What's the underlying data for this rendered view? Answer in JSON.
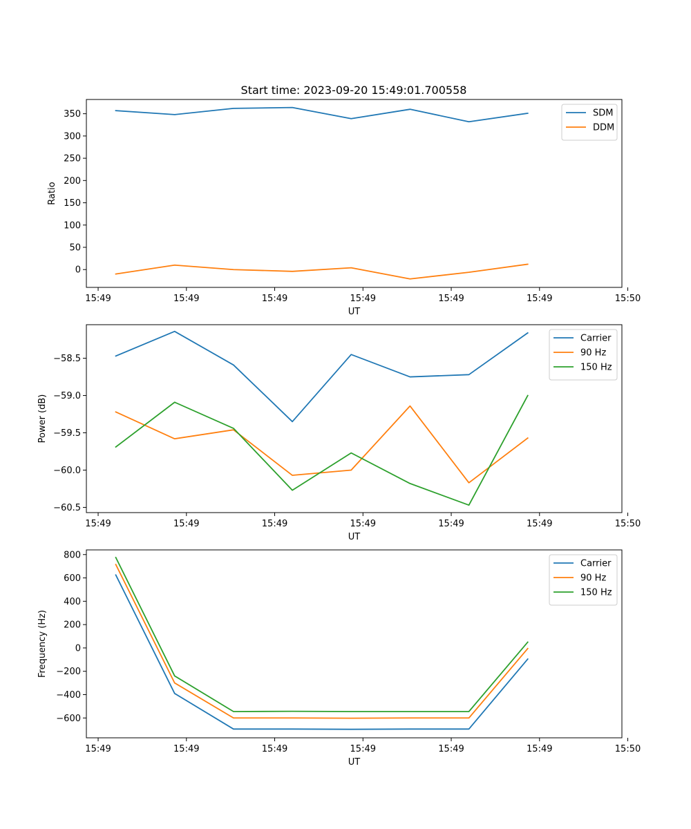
{
  "title": "Start time: 2023-09-20 15:49:01.700558",
  "colors": {
    "c0": "#1f77b4",
    "c1": "#ff7f0e",
    "c2": "#2ca02c"
  },
  "chart_data": [
    {
      "type": "line",
      "xlabel": "UT",
      "ylabel": "Ratio",
      "x_index": [
        0,
        1,
        2,
        3,
        4,
        5,
        6,
        7
      ],
      "xlim": [
        -0.5,
        8.6
      ],
      "ylim": [
        -40,
        382
      ],
      "xticks": [
        -0.3,
        1.2,
        2.7,
        4.2,
        5.7,
        7.2,
        8.7
      ],
      "xtick_labels": [
        "15:49",
        "15:49",
        "15:49",
        "15:49",
        "15:49",
        "15:49",
        "15:50"
      ],
      "yticks": [
        0,
        50,
        100,
        150,
        200,
        250,
        300,
        350
      ],
      "ytick_labels": [
        "0",
        "50",
        "100",
        "150",
        "200",
        "250",
        "300",
        "350"
      ],
      "legend_position": "top-right",
      "series": [
        {
          "name": "SDM",
          "color": "#1f77b4",
          "values": [
            357,
            348,
            362,
            364,
            339,
            360,
            332,
            351
          ]
        },
        {
          "name": "DDM",
          "color": "#ff7f0e",
          "values": [
            -10,
            10,
            0,
            -4,
            4,
            -21,
            -6,
            12
          ]
        }
      ]
    },
    {
      "type": "line",
      "xlabel": "UT",
      "ylabel": "Power (dB)",
      "x_index": [
        0,
        1,
        2,
        3,
        4,
        5,
        6,
        7
      ],
      "xlim": [
        -0.5,
        8.6
      ],
      "ylim": [
        -60.57,
        -58.05
      ],
      "xticks": [
        -0.3,
        1.2,
        2.7,
        4.2,
        5.7,
        7.2,
        8.7
      ],
      "xtick_labels": [
        "15:49",
        "15:49",
        "15:49",
        "15:49",
        "15:49",
        "15:49",
        "15:50"
      ],
      "yticks": [
        -58.5,
        -59.0,
        -59.5,
        -60.0,
        -60.5
      ],
      "ytick_labels": [
        "−58.5",
        "−59.0",
        "−59.5",
        "−60.0",
        "−60.5"
      ],
      "legend_position": "top-right",
      "series": [
        {
          "name": "Carrier",
          "color": "#1f77b4",
          "values": [
            -58.47,
            -58.14,
            -58.59,
            -59.35,
            -58.45,
            -58.75,
            -58.72,
            -58.16
          ]
        },
        {
          "name": "90 Hz",
          "color": "#ff7f0e",
          "values": [
            -59.22,
            -59.58,
            -59.46,
            -60.07,
            -60.0,
            -59.14,
            -60.17,
            -59.57
          ]
        },
        {
          "name": "150 Hz",
          "color": "#2ca02c",
          "values": [
            -59.69,
            -59.09,
            -59.44,
            -60.27,
            -59.77,
            -60.18,
            -60.47,
            -59.0
          ]
        }
      ]
    },
    {
      "type": "line",
      "xlabel": "UT",
      "ylabel": "Frequency (Hz)",
      "x_index": [
        0,
        1,
        2,
        3,
        4,
        5,
        6,
        7
      ],
      "xlim": [
        -0.5,
        8.6
      ],
      "ylim": [
        -770,
        840
      ],
      "xticks": [
        -0.3,
        1.2,
        2.7,
        4.2,
        5.7,
        7.2,
        8.7
      ],
      "xtick_labels": [
        "15:49",
        "15:49",
        "15:49",
        "15:49",
        "15:49",
        "15:49",
        "15:50"
      ],
      "yticks": [
        800,
        600,
        400,
        200,
        0,
        -200,
        -400,
        -600
      ],
      "ytick_labels": [
        "800",
        "600",
        "400",
        "200",
        "0",
        "−200",
        "−400",
        "−600"
      ],
      "legend_position": "top-right",
      "series": [
        {
          "name": "Carrier",
          "color": "#1f77b4",
          "values": [
            625,
            -390,
            -695,
            -695,
            -697,
            -695,
            -695,
            -95
          ]
        },
        {
          "name": "90 Hz",
          "color": "#ff7f0e",
          "values": [
            715,
            -300,
            -600,
            -600,
            -602,
            -600,
            -600,
            -5
          ]
        },
        {
          "name": "150 Hz",
          "color": "#2ca02c",
          "values": [
            775,
            -240,
            -545,
            -543,
            -545,
            -545,
            -545,
            50
          ]
        }
      ]
    }
  ]
}
